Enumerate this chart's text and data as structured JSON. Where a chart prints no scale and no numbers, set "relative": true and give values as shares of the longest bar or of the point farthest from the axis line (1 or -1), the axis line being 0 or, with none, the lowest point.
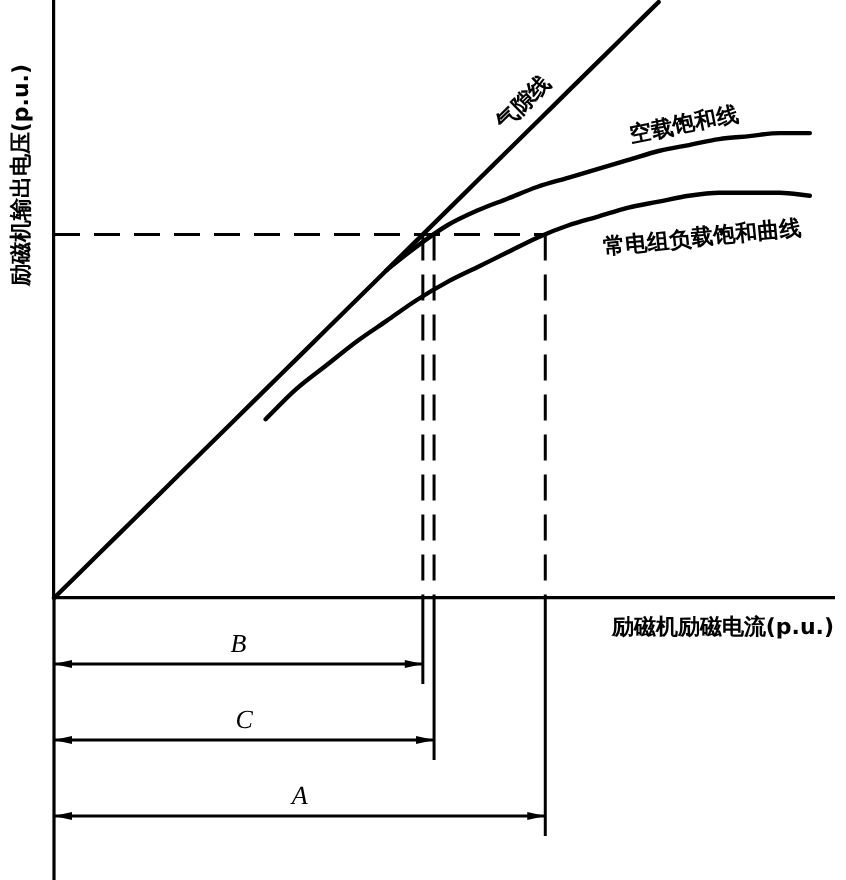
{
  "chart_data": {
    "type": "line",
    "relative": true,
    "xlabel": "励磁机励磁电流(p.u.)",
    "ylabel": "励磁机输出电压(p.u.)",
    "categories": [
      null,
      null,
      null,
      null,
      null,
      null,
      null,
      null,
      null,
      null,
      null,
      null,
      null,
      null,
      null,
      null,
      null,
      null,
      null,
      null,
      null,
      null,
      null,
      null,
      null,
      null
    ],
    "series": [
      {
        "name": "气隙线",
        "color": "#000000",
        "values": [
          0,
          0.05,
          0.1,
          0.15,
          0.2,
          0.25,
          0.3,
          0.35,
          0.4,
          0.45,
          0.5,
          0.55,
          0.6,
          0.65,
          0.7,
          0.75,
          0.8,
          0.85,
          0.9,
          0.95,
          1,
          null,
          null,
          null,
          null,
          null
        ]
      },
      {
        "name": "空载饱和线",
        "color": "#000000",
        "values": [
          null,
          null,
          null,
          null,
          null,
          null,
          null,
          null,
          null,
          null,
          null,
          0.55,
          0.59,
          0.625,
          0.65,
          0.67,
          0.69,
          0.705,
          0.72,
          0.735,
          0.75,
          0.76,
          0.77,
          0.775,
          0.78,
          0.78
        ]
      },
      {
        "name": "常电组负载饱和曲线",
        "color": "#000000",
        "values": [
          null,
          null,
          null,
          null,
          null,
          null,
          null,
          0.3,
          0.35,
          0.39,
          0.43,
          0.465,
          0.5,
          0.53,
          0.555,
          0.58,
          0.605,
          0.625,
          0.64,
          0.655,
          0.665,
          0.675,
          0.68,
          0.68,
          0.68,
          0.675
        ]
      }
    ],
    "ref_lines": [
      {
        "axis": "y",
        "value": 0.61,
        "line_style": "dashed"
      }
    ],
    "annotations": [
      "B",
      "C",
      "A"
    ],
    "legend": false,
    "grid": false,
    "marker": "none",
    "line_style": "solid"
  }
}
